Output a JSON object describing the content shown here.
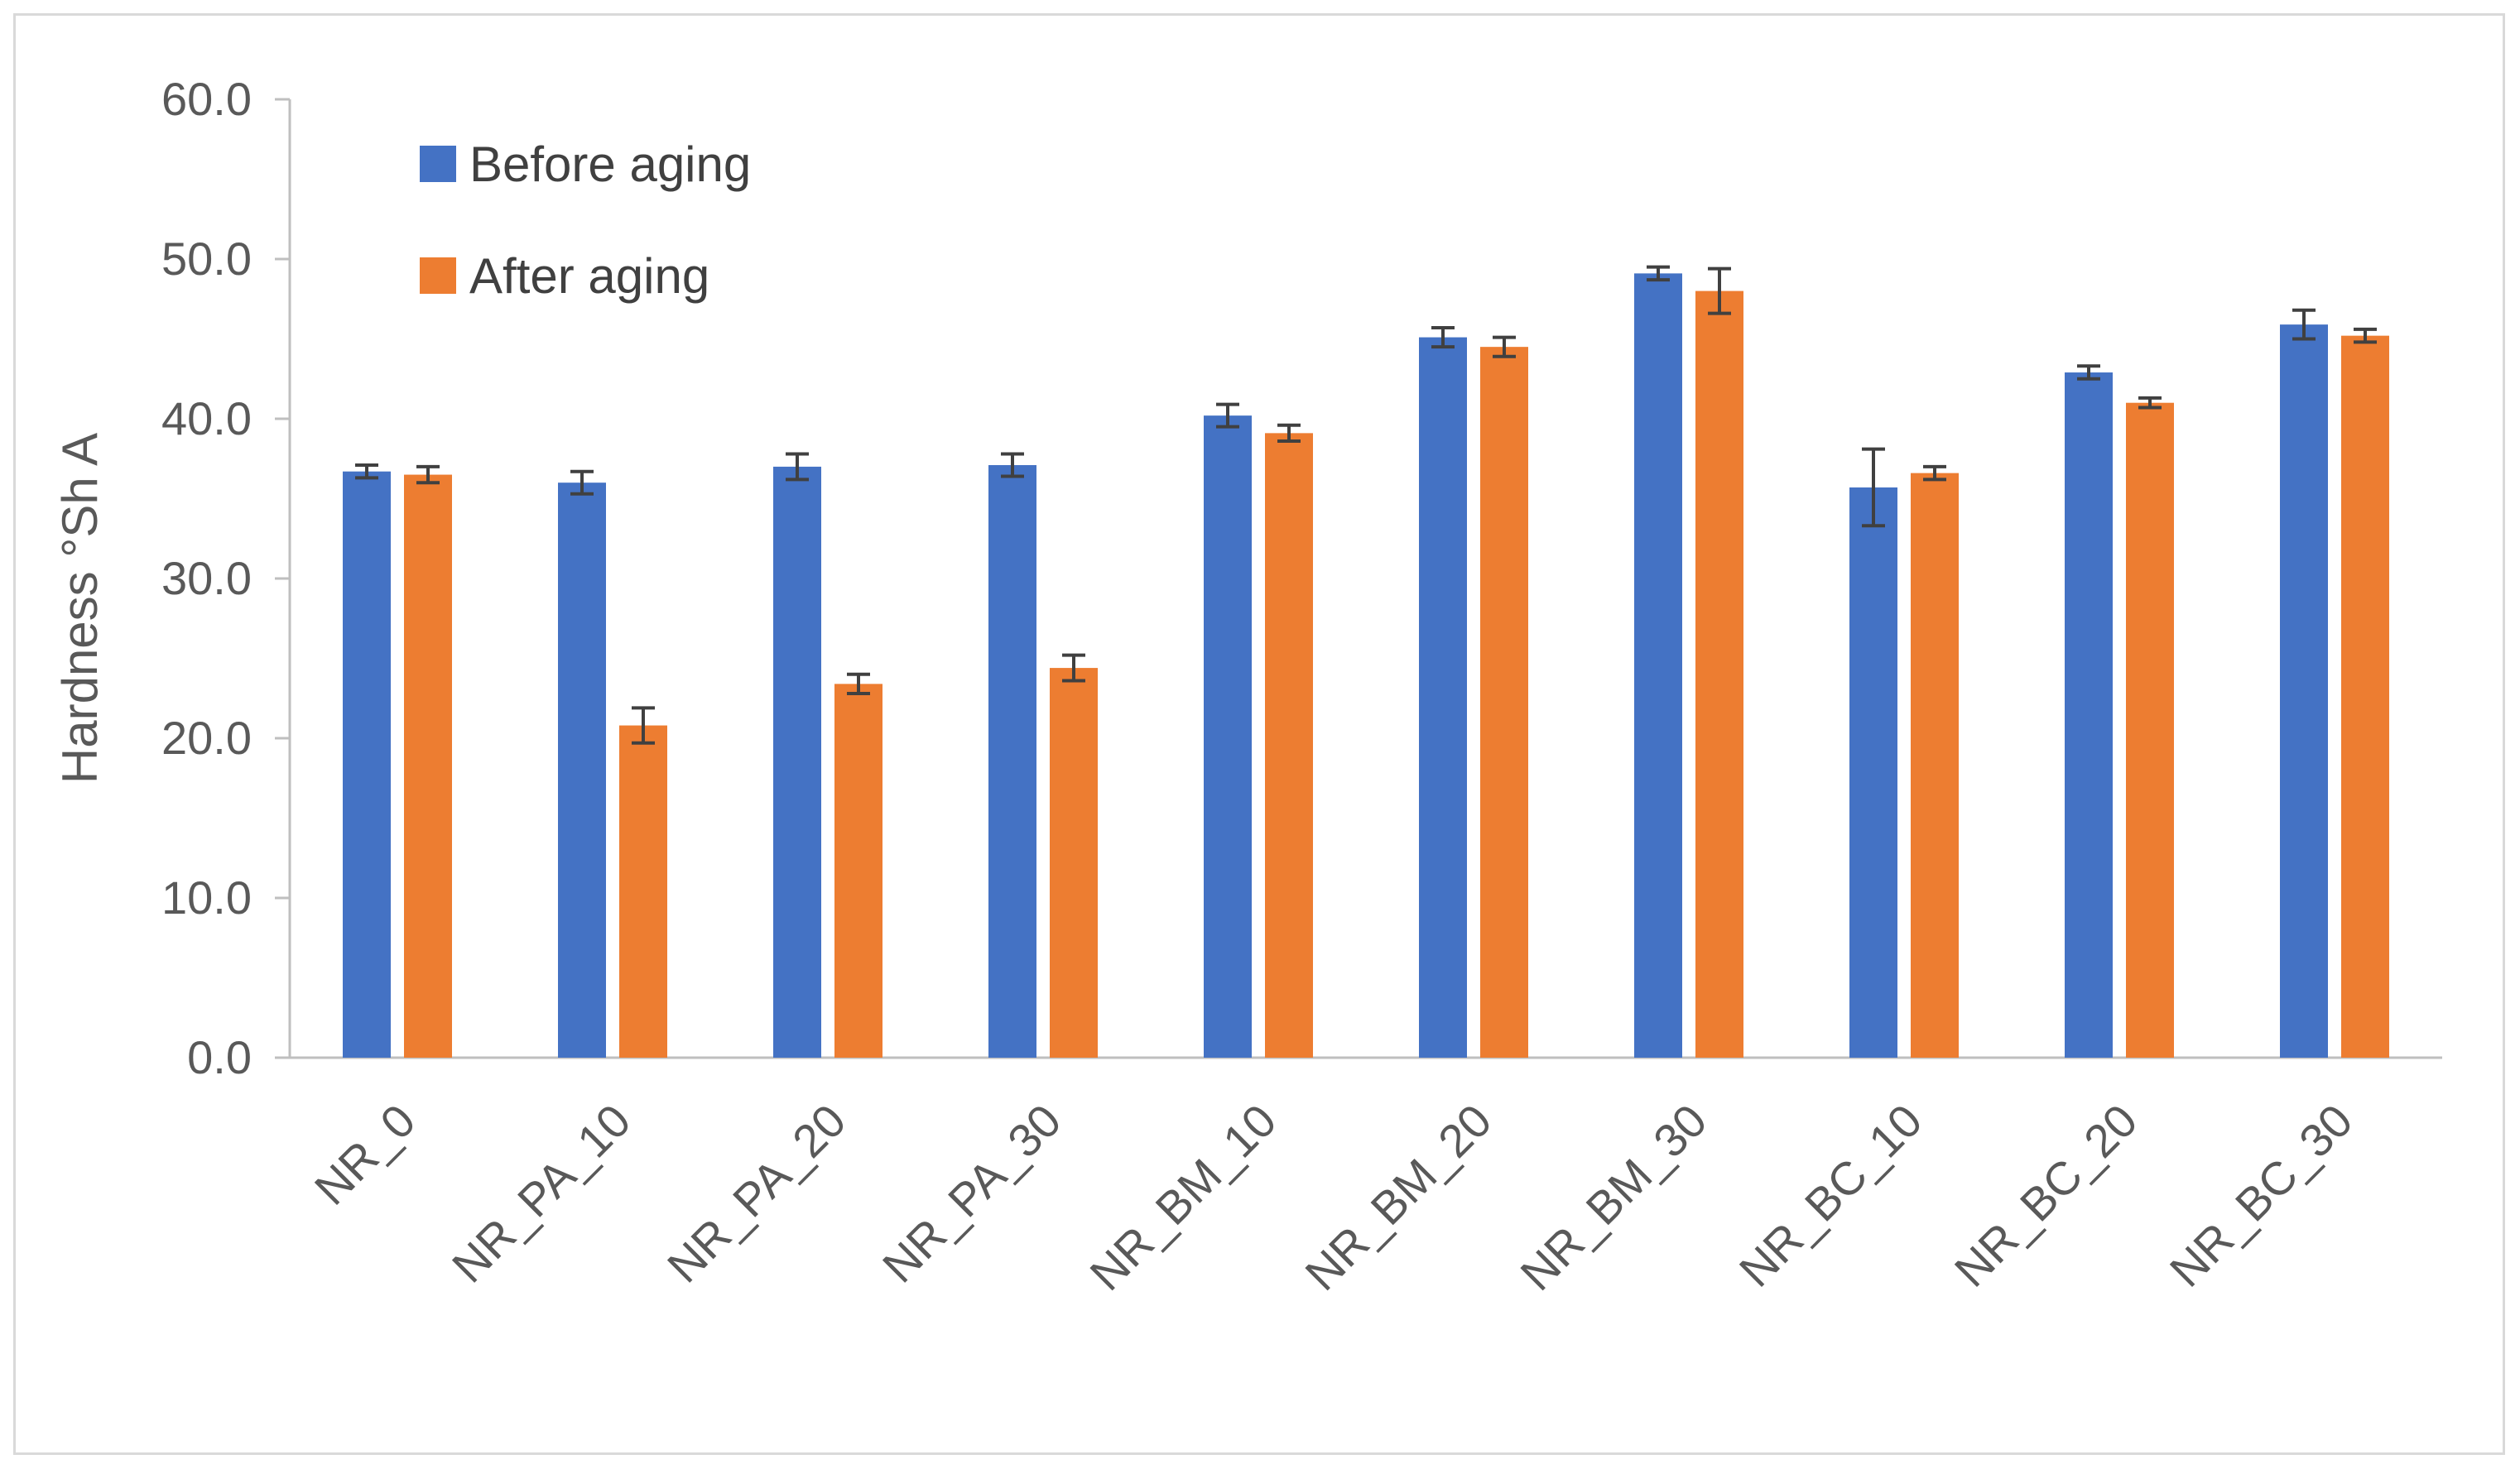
{
  "colors": {
    "before": "#4472C4",
    "after": "#ED7D31",
    "error_bar": "#404040",
    "axis": "#BFBFBF",
    "text": "#595959"
  },
  "chart_data": {
    "type": "bar",
    "title": "",
    "xlabel": "",
    "ylabel": "Hardness °Sh A",
    "ylim": [
      0,
      60
    ],
    "yticks": [
      "0.0",
      "10.0",
      "20.0",
      "30.0",
      "40.0",
      "50.0",
      "60.0"
    ],
    "grid": false,
    "legend_position": "top-left",
    "categories": [
      "NR_0",
      "NR_PA_10",
      "NR_PA_20",
      "NR_PA_30",
      "NR_BM_10",
      "NR_BM_20",
      "NR_BM_30",
      "NR_BC_10",
      "NR_BC_20",
      "NR_BC_30"
    ],
    "series": [
      {
        "name": "Before aging",
        "values": [
          36.7,
          36.0,
          37.0,
          37.1,
          40.2,
          45.1,
          49.1,
          35.7,
          42.9,
          45.9
        ],
        "errors": [
          0.4,
          0.7,
          0.8,
          0.7,
          0.7,
          0.6,
          0.4,
          2.4,
          0.4,
          0.9
        ]
      },
      {
        "name": "After aging",
        "values": [
          36.5,
          20.8,
          23.4,
          24.4,
          39.1,
          44.5,
          48.0,
          36.6,
          41.0,
          45.2
        ],
        "errors": [
          0.5,
          1.1,
          0.6,
          0.8,
          0.5,
          0.6,
          1.4,
          0.4,
          0.3,
          0.4
        ]
      }
    ]
  }
}
